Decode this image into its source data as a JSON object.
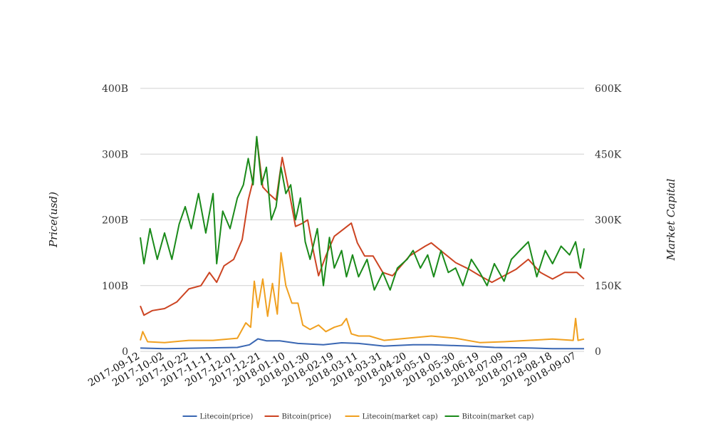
{
  "chart_data": {
    "type": "line",
    "x_ticks": [
      "2017-09-12",
      "2017-10-02",
      "2017-10-22",
      "2017-11-11",
      "2017-12-01",
      "2017-12-21",
      "2018-01-10",
      "2018-01-30",
      "2018-02-19",
      "2018-03-11",
      "2018-03-31",
      "2018-04-20",
      "2018-05-10",
      "2018-05-30",
      "2018-06-19",
      "2018-07-09",
      "2018-07-29",
      "2018-08-18",
      "2018-09-07"
    ],
    "x_range": [
      "2017-09-12",
      "2018-09-13"
    ],
    "left_axis": {
      "title": "Price(usd)",
      "ylim": [
        0,
        400
      ],
      "ticks": [
        0,
        100,
        200,
        300,
        400
      ],
      "tick_labels": [
        "0",
        "100B",
        "200B",
        "300B",
        "400B"
      ]
    },
    "right_axis": {
      "title": "Market Capital",
      "ylim": [
        0,
        600
      ],
      "ticks": [
        0,
        150,
        300,
        450,
        600
      ],
      "tick_labels": [
        "0",
        "150K",
        "300K",
        "450K",
        "600K"
      ]
    },
    "grid": true,
    "legend_position": "bottom",
    "series": [
      {
        "name": "Litecoin(price)",
        "color": "#3a67b3",
        "axis": "left",
        "points": [
          [
            "2017-09-12",
            5
          ],
          [
            "2017-10-02",
            4
          ],
          [
            "2017-11-01",
            5
          ],
          [
            "2017-12-01",
            6
          ],
          [
            "2017-12-11",
            10
          ],
          [
            "2017-12-18",
            19
          ],
          [
            "2017-12-25",
            16
          ],
          [
            "2018-01-05",
            16
          ],
          [
            "2018-01-20",
            12
          ],
          [
            "2018-02-10",
            10
          ],
          [
            "2018-02-25",
            13
          ],
          [
            "2018-03-11",
            12
          ],
          [
            "2018-04-01",
            8
          ],
          [
            "2018-04-25",
            10
          ],
          [
            "2018-05-10",
            10
          ],
          [
            "2018-06-10",
            8
          ],
          [
            "2018-07-01",
            6
          ],
          [
            "2018-08-01",
            5
          ],
          [
            "2018-08-18",
            4
          ],
          [
            "2018-09-13",
            4
          ]
        ]
      },
      {
        "name": "Bitcoin(price)",
        "color": "#cc4422",
        "axis": "left",
        "points": [
          [
            "2017-09-12",
            69
          ],
          [
            "2017-09-15",
            55
          ],
          [
            "2017-09-22",
            62
          ],
          [
            "2017-10-02",
            65
          ],
          [
            "2017-10-12",
            75
          ],
          [
            "2017-10-22",
            95
          ],
          [
            "2017-11-01",
            100
          ],
          [
            "2017-11-08",
            120
          ],
          [
            "2017-11-14",
            105
          ],
          [
            "2017-11-20",
            130
          ],
          [
            "2017-11-28",
            140
          ],
          [
            "2017-12-05",
            170
          ],
          [
            "2017-12-10",
            230
          ],
          [
            "2017-12-14",
            260
          ],
          [
            "2017-12-17",
            325
          ],
          [
            "2017-12-22",
            250
          ],
          [
            "2017-12-27",
            240
          ],
          [
            "2018-01-02",
            230
          ],
          [
            "2018-01-07",
            295
          ],
          [
            "2018-01-13",
            240
          ],
          [
            "2018-01-18",
            190
          ],
          [
            "2018-01-24",
            195
          ],
          [
            "2018-01-28",
            200
          ],
          [
            "2018-02-02",
            150
          ],
          [
            "2018-02-06",
            115
          ],
          [
            "2018-02-12",
            145
          ],
          [
            "2018-02-19",
            175
          ],
          [
            "2018-02-26",
            185
          ],
          [
            "2018-03-05",
            195
          ],
          [
            "2018-03-10",
            165
          ],
          [
            "2018-03-16",
            145
          ],
          [
            "2018-03-23",
            145
          ],
          [
            "2018-03-31",
            120
          ],
          [
            "2018-04-08",
            115
          ],
          [
            "2018-04-15",
            130
          ],
          [
            "2018-04-22",
            145
          ],
          [
            "2018-05-05",
            160
          ],
          [
            "2018-05-10",
            165
          ],
          [
            "2018-05-20",
            150
          ],
          [
            "2018-05-30",
            135
          ],
          [
            "2018-06-10",
            125
          ],
          [
            "2018-06-19",
            115
          ],
          [
            "2018-06-29",
            105
          ],
          [
            "2018-07-09",
            115
          ],
          [
            "2018-07-19",
            125
          ],
          [
            "2018-07-29",
            140
          ],
          [
            "2018-08-08",
            120
          ],
          [
            "2018-08-18",
            110
          ],
          [
            "2018-08-28",
            120
          ],
          [
            "2018-09-07",
            120
          ],
          [
            "2018-09-13",
            110
          ]
        ]
      },
      {
        "name": "Litecoin(market cap)",
        "color": "#f0a020",
        "axis": "right",
        "points": [
          [
            "2017-09-12",
            25
          ],
          [
            "2017-09-14",
            45
          ],
          [
            "2017-09-18",
            22
          ],
          [
            "2017-10-02",
            20
          ],
          [
            "2017-10-22",
            25
          ],
          [
            "2017-11-11",
            25
          ],
          [
            "2017-12-01",
            30
          ],
          [
            "2017-12-08",
            65
          ],
          [
            "2017-12-12",
            55
          ],
          [
            "2017-12-15",
            160
          ],
          [
            "2017-12-18",
            100
          ],
          [
            "2017-12-22",
            165
          ],
          [
            "2017-12-26",
            80
          ],
          [
            "2017-12-30",
            155
          ],
          [
            "2018-01-03",
            85
          ],
          [
            "2018-01-06",
            225
          ],
          [
            "2018-01-10",
            150
          ],
          [
            "2018-01-15",
            110
          ],
          [
            "2018-01-20",
            110
          ],
          [
            "2018-01-24",
            60
          ],
          [
            "2018-01-30",
            50
          ],
          [
            "2018-02-06",
            60
          ],
          [
            "2018-02-12",
            45
          ],
          [
            "2018-02-19",
            55
          ],
          [
            "2018-02-25",
            60
          ],
          [
            "2018-03-01",
            75
          ],
          [
            "2018-03-05",
            40
          ],
          [
            "2018-03-11",
            35
          ],
          [
            "2018-03-20",
            35
          ],
          [
            "2018-04-01",
            25
          ],
          [
            "2018-04-20",
            30
          ],
          [
            "2018-05-10",
            35
          ],
          [
            "2018-05-30",
            30
          ],
          [
            "2018-06-19",
            20
          ],
          [
            "2018-07-09",
            22
          ],
          [
            "2018-07-29",
            25
          ],
          [
            "2018-08-18",
            28
          ],
          [
            "2018-09-04",
            25
          ],
          [
            "2018-09-06",
            75
          ],
          [
            "2018-09-08",
            25
          ],
          [
            "2018-09-13",
            28
          ]
        ]
      },
      {
        "name": "Bitcoin(market cap)",
        "color": "#1a8a1a",
        "axis": "right",
        "points": [
          [
            "2017-09-12",
            260
          ],
          [
            "2017-09-15",
            200
          ],
          [
            "2017-09-20",
            280
          ],
          [
            "2017-09-26",
            210
          ],
          [
            "2017-10-02",
            270
          ],
          [
            "2017-10-08",
            210
          ],
          [
            "2017-10-14",
            290
          ],
          [
            "2017-10-19",
            330
          ],
          [
            "2017-10-24",
            280
          ],
          [
            "2017-10-30",
            360
          ],
          [
            "2017-11-05",
            270
          ],
          [
            "2017-11-11",
            360
          ],
          [
            "2017-11-14",
            200
          ],
          [
            "2017-11-19",
            320
          ],
          [
            "2017-11-25",
            280
          ],
          [
            "2017-12-01",
            350
          ],
          [
            "2017-12-06",
            380
          ],
          [
            "2017-12-10",
            440
          ],
          [
            "2017-12-14",
            380
          ],
          [
            "2017-12-17",
            490
          ],
          [
            "2017-12-21",
            380
          ],
          [
            "2017-12-25",
            420
          ],
          [
            "2017-12-29",
            300
          ],
          [
            "2018-01-02",
            330
          ],
          [
            "2018-01-06",
            420
          ],
          [
            "2018-01-10",
            360
          ],
          [
            "2018-01-14",
            380
          ],
          [
            "2018-01-18",
            300
          ],
          [
            "2018-01-22",
            350
          ],
          [
            "2018-01-26",
            250
          ],
          [
            "2018-01-30",
            210
          ],
          [
            "2018-02-05",
            280
          ],
          [
            "2018-02-10",
            150
          ],
          [
            "2018-02-15",
            260
          ],
          [
            "2018-02-19",
            190
          ],
          [
            "2018-02-25",
            230
          ],
          [
            "2018-03-01",
            170
          ],
          [
            "2018-03-06",
            220
          ],
          [
            "2018-03-11",
            170
          ],
          [
            "2018-03-18",
            210
          ],
          [
            "2018-03-24",
            140
          ],
          [
            "2018-03-31",
            180
          ],
          [
            "2018-04-06",
            140
          ],
          [
            "2018-04-12",
            190
          ],
          [
            "2018-04-20",
            210
          ],
          [
            "2018-04-25",
            230
          ],
          [
            "2018-05-01",
            190
          ],
          [
            "2018-05-07",
            220
          ],
          [
            "2018-05-12",
            170
          ],
          [
            "2018-05-18",
            230
          ],
          [
            "2018-05-24",
            180
          ],
          [
            "2018-05-30",
            190
          ],
          [
            "2018-06-05",
            150
          ],
          [
            "2018-06-12",
            210
          ],
          [
            "2018-06-19",
            180
          ],
          [
            "2018-06-25",
            150
          ],
          [
            "2018-07-01",
            200
          ],
          [
            "2018-07-09",
            160
          ],
          [
            "2018-07-15",
            210
          ],
          [
            "2018-07-22",
            230
          ],
          [
            "2018-07-29",
            250
          ],
          [
            "2018-08-05",
            170
          ],
          [
            "2018-08-12",
            230
          ],
          [
            "2018-08-18",
            200
          ],
          [
            "2018-08-25",
            240
          ],
          [
            "2018-09-01",
            220
          ],
          [
            "2018-09-06",
            250
          ],
          [
            "2018-09-10",
            190
          ],
          [
            "2018-09-13",
            235
          ]
        ]
      }
    ]
  }
}
